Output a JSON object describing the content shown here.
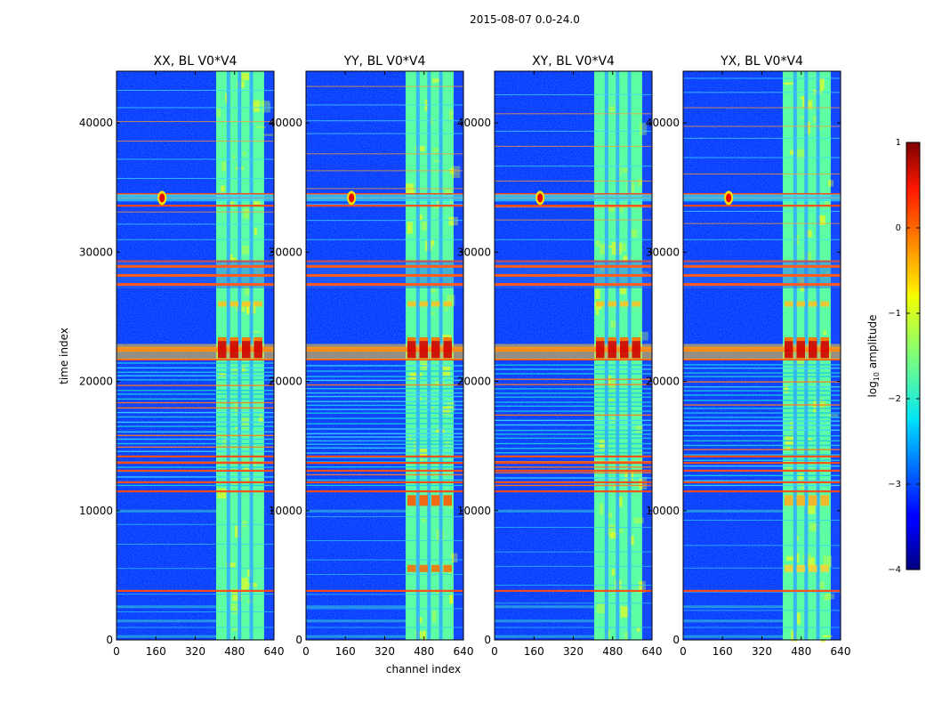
{
  "chart_data": {
    "type": "heatmap",
    "title": "2015-08-07 0.0-24.0",
    "xlabel": "channel index",
    "ylabel": "time index",
    "xlim": [
      0,
      640
    ],
    "ylim": [
      0,
      44000
    ],
    "xticks": [
      0,
      160,
      320,
      480,
      640
    ],
    "yticks": [
      0,
      10000,
      20000,
      30000,
      40000
    ],
    "panels": [
      {
        "title": "XX, BL V0*V4",
        "pol": "XX"
      },
      {
        "title": "YY, BL V0*V4",
        "pol": "YY"
      },
      {
        "title": "XY, BL V0*V4",
        "pol": "XY"
      },
      {
        "title": "YX, BL V0*V4",
        "pol": "YX"
      }
    ],
    "colorbar": {
      "label": "log10 amplitude",
      "label_main": "log",
      "label_sub": "10",
      "label_rest": " amplitude",
      "range": [
        -4,
        1
      ],
      "ticks": [
        "1",
        "0",
        "−1",
        "−2",
        "−3",
        "−4"
      ],
      "tick_values": [
        1,
        0,
        -1,
        -2,
        -3,
        -4
      ],
      "colormap": "jet"
    },
    "features": {
      "bright_channel_band": [
        405,
        600
      ],
      "band_column_gaps": [
        455,
        500,
        548
      ],
      "rfi_time_rows": [
        3800,
        11500,
        12200,
        13100,
        13700,
        14200,
        21700,
        22600,
        27500,
        28200,
        28900,
        29300,
        33600,
        34200,
        34500
      ],
      "hot_spot": {
        "channel": 185,
        "time": 34200
      }
    }
  }
}
